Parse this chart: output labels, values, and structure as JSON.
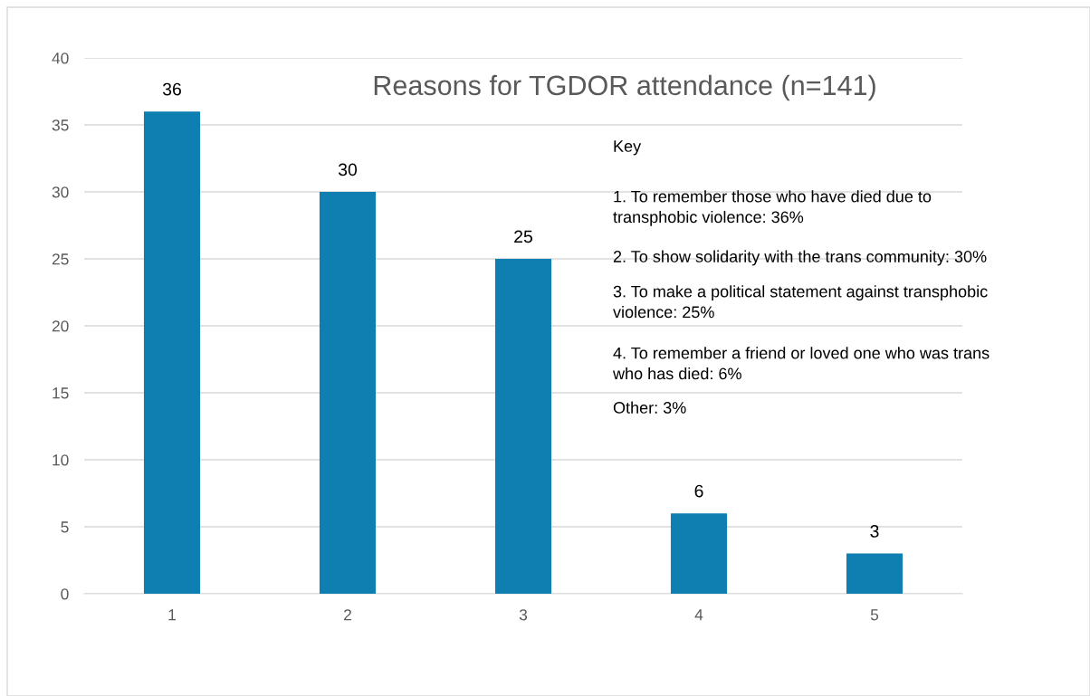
{
  "chart_data": {
    "type": "bar",
    "title": "Reasons for TGDOR attendance (n=141)",
    "categories": [
      "1",
      "2",
      "3",
      "4",
      "5"
    ],
    "values": [
      36,
      30,
      25,
      6,
      3
    ],
    "color": "#0e7fb0",
    "ylim": [
      0,
      40
    ],
    "yticks": [
      0,
      5,
      10,
      15,
      20,
      25,
      30,
      35,
      40
    ],
    "grid": "y",
    "data_labels": true,
    "annotations": [
      "Key",
      "1. To remember those who have died due to\ntransphobic violence: 36%",
      "2. To show solidarity with the trans community: 30%",
      "3. To make a political statement against transphobic\nviolence: 25%",
      "4. To remember a friend or loved one who was trans\nwho has died: 6%",
      "Other: 3%"
    ]
  }
}
